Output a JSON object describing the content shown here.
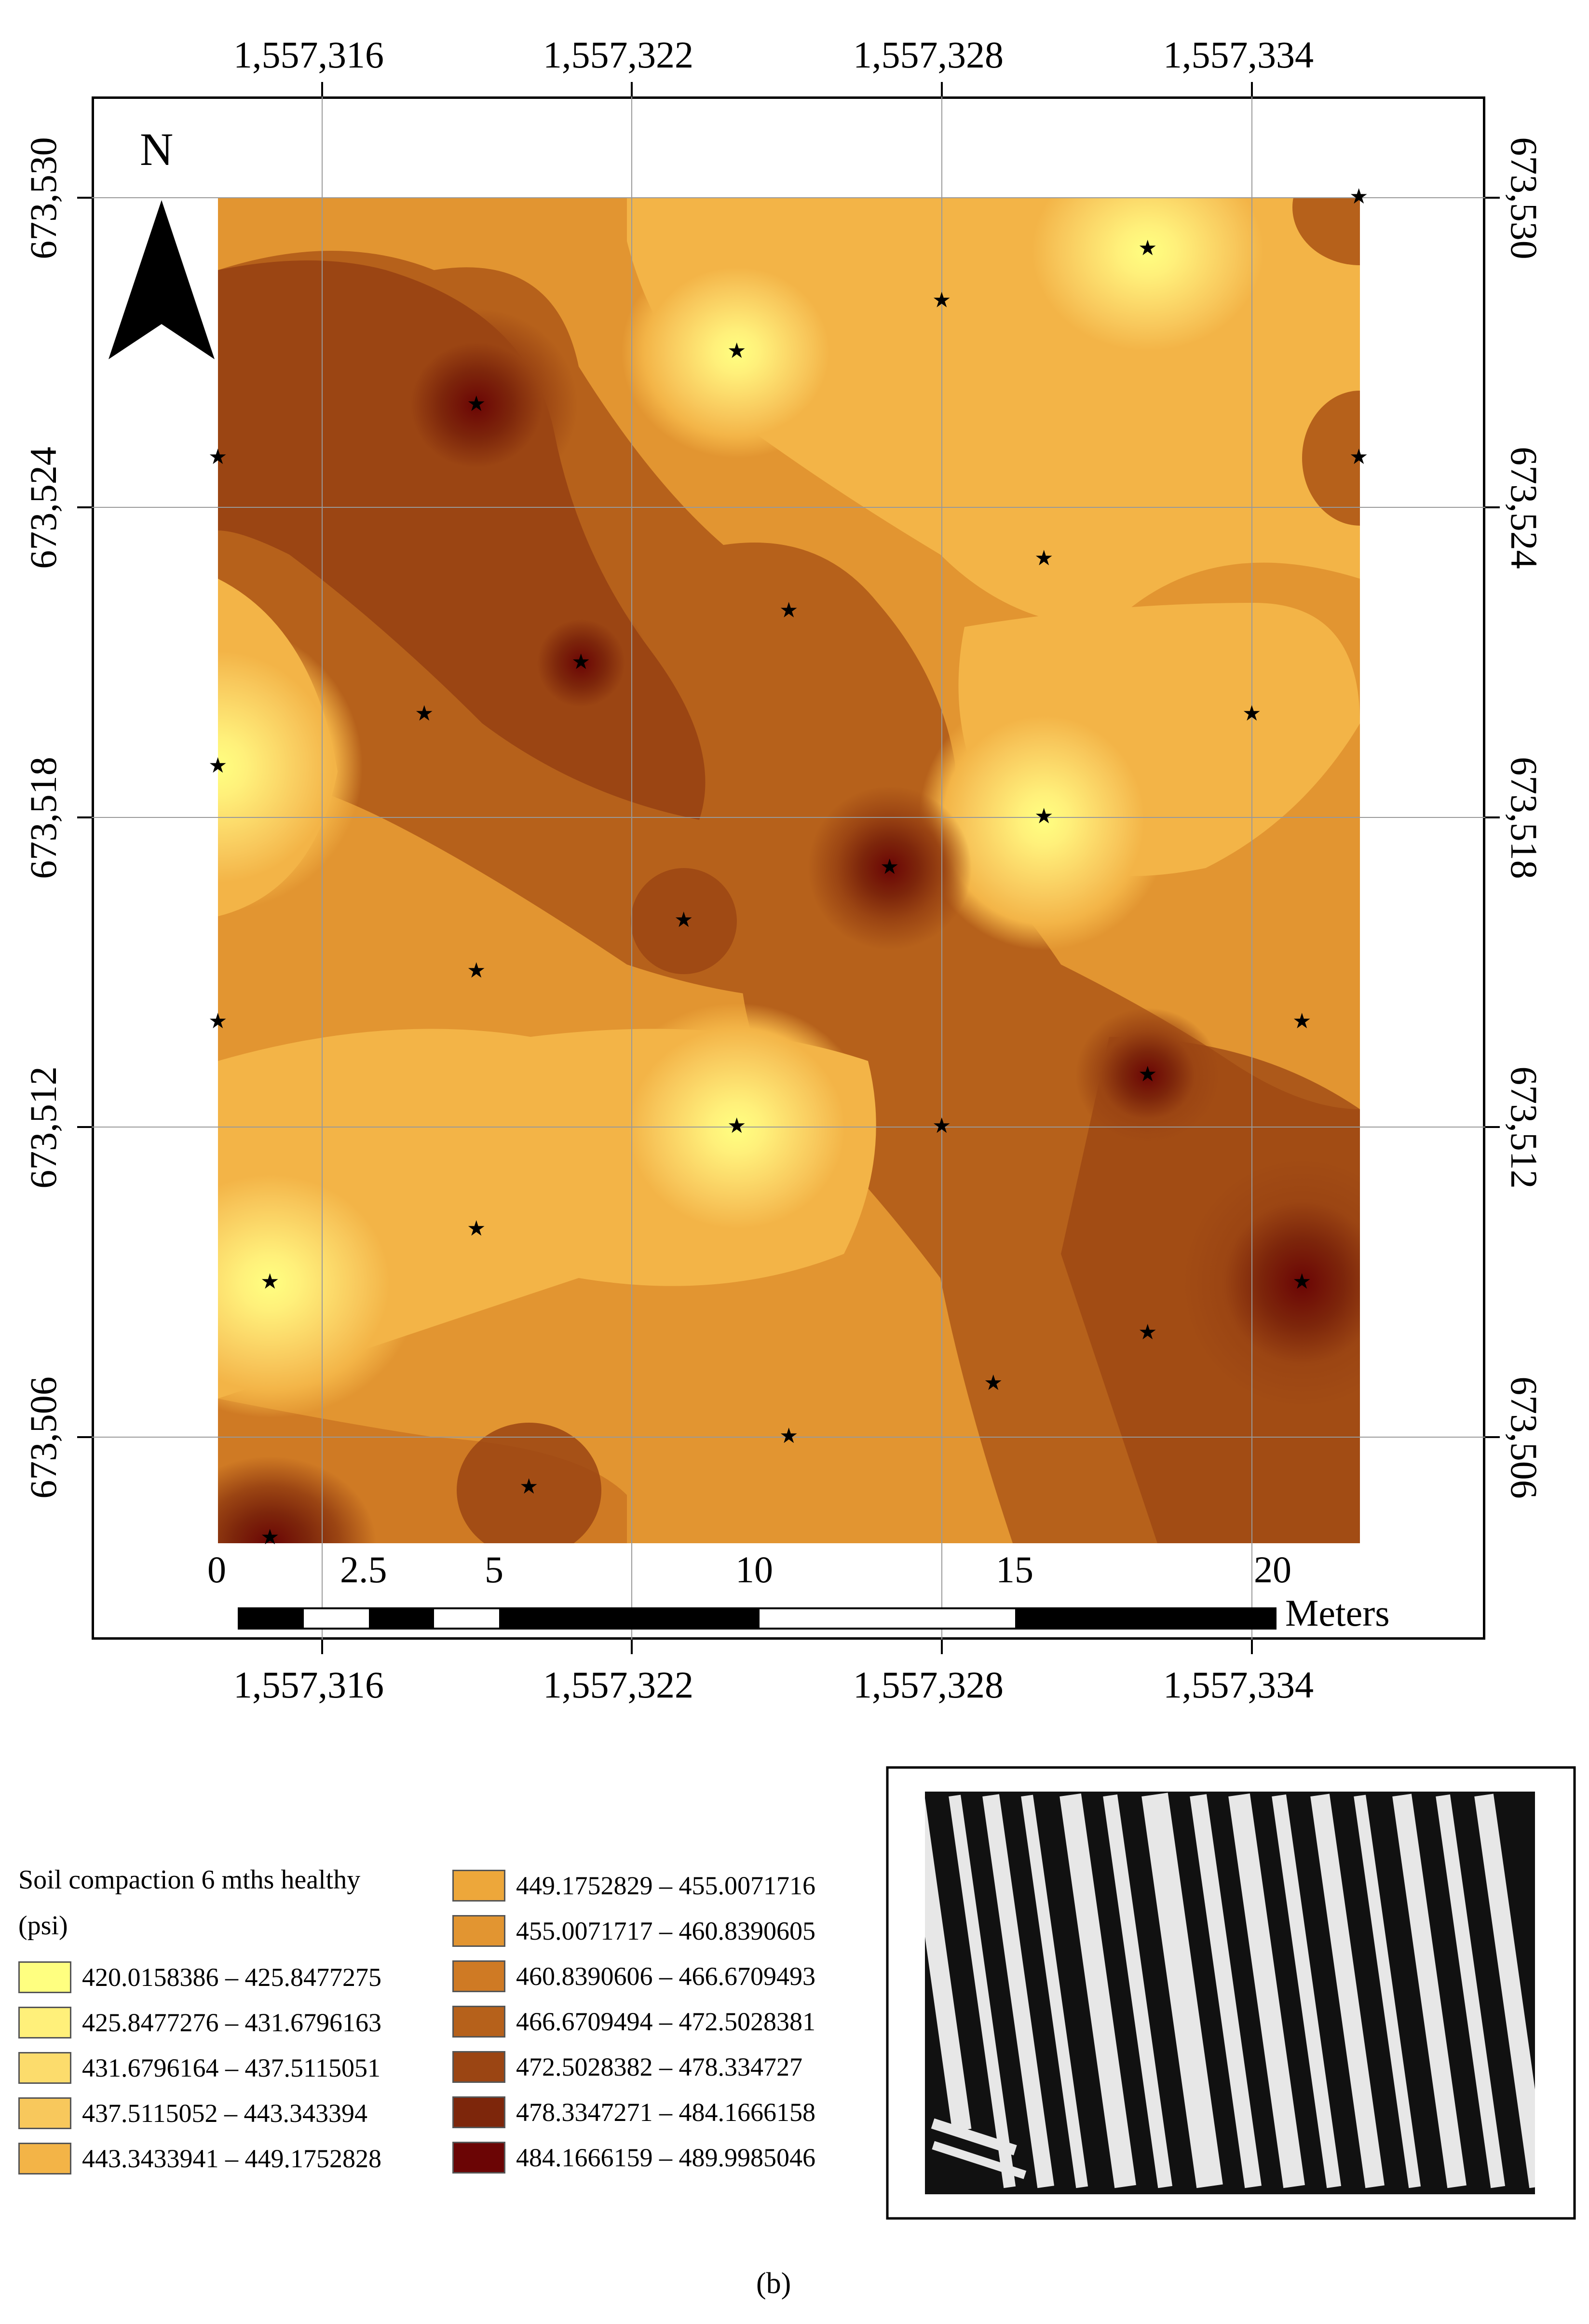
{
  "map": {
    "north_label": "N",
    "x_ticks": [
      "1,557,316",
      "1,557,322",
      "1,557,328",
      "1,557,334"
    ],
    "y_ticks": [
      "673,530",
      "673,524",
      "673,518",
      "673,512",
      "673,506"
    ],
    "scale_labels": [
      "0",
      "2.5",
      "5",
      "10",
      "15",
      "20"
    ],
    "scale_unit": "Meters",
    "sample_marker": "★"
  },
  "legend": {
    "title_line1": "Soil compaction 6 mths healthy",
    "title_line2": "(psi)",
    "classes": [
      {
        "label": "420.0158386 – 425.8477275",
        "color": "#ffff80"
      },
      {
        "label": "425.8477276 – 431.6796163",
        "color": "#fff07a"
      },
      {
        "label": "431.6796164 – 437.5115051",
        "color": "#fcdc6c"
      },
      {
        "label": "437.5115052 – 443.343394",
        "color": "#f8c85c"
      },
      {
        "label": "443.3433941 – 449.1752828",
        "color": "#f3b447"
      },
      {
        "label": "449.1752829 – 455.0071716",
        "color": "#eda73a"
      },
      {
        "label": "455.0071717 – 460.8390605",
        "color": "#e29531"
      },
      {
        "label": "460.8390606 – 466.6709493",
        "color": "#cf7a24"
      },
      {
        "label": "466.6709494 – 472.5028381",
        "color": "#b6611b"
      },
      {
        "label": "472.5028382 – 478.334727",
        "color": "#9b4513"
      },
      {
        "label": "478.3347271 – 484.1666158",
        "color": "#7d260b"
      },
      {
        "label": "484.1666159 – 489.9985046",
        "color": "#6b0505"
      }
    ]
  },
  "caption": "(b)"
}
